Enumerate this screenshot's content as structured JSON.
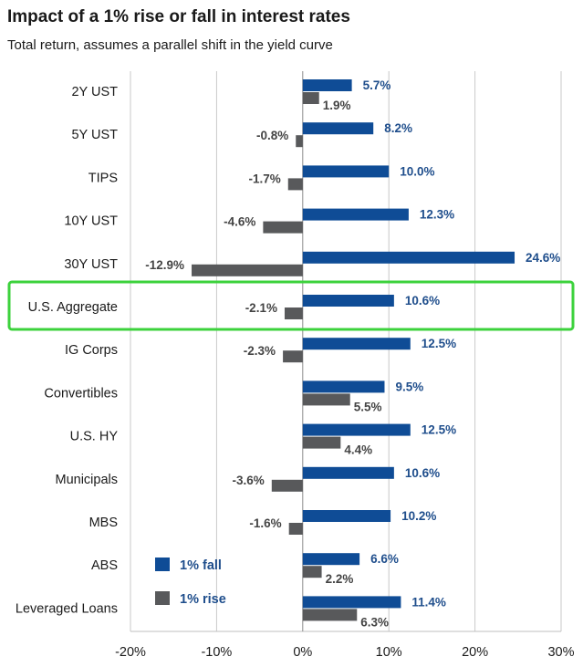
{
  "header": {
    "title": "Impact of a 1% rise or fall in interest rates",
    "subtitle": "Total return, assumes a parallel shift in the yield curve"
  },
  "chart_data": {
    "type": "bar",
    "orientation": "horizontal",
    "title": "Impact of a 1% rise or fall in interest rates",
    "subtitle": "Total return, assumes a parallel shift in the yield curve",
    "categories": [
      "2Y UST",
      "5Y UST",
      "TIPS",
      "10Y UST",
      "30Y UST",
      "U.S. Aggregate",
      "IG Corps",
      "Convertibles",
      "U.S. HY",
      "Municipals",
      "MBS",
      "ABS",
      "Leveraged Loans"
    ],
    "series": [
      {
        "name": "1% fall",
        "color": "#0f4c96",
        "values": [
          5.7,
          8.2,
          10.0,
          12.3,
          24.6,
          10.6,
          12.5,
          9.5,
          12.5,
          10.6,
          10.2,
          6.6,
          11.4
        ],
        "labels": [
          "5.7%",
          "8.2%",
          "10.0%",
          "12.3%",
          "24.6%",
          "10.6%",
          "12.5%",
          "9.5%",
          "12.5%",
          "10.6%",
          "10.2%",
          "6.6%",
          "11.4%"
        ]
      },
      {
        "name": "1% rise",
        "color": "#58595b",
        "values": [
          1.9,
          -0.8,
          -1.7,
          -4.6,
          -12.9,
          -2.1,
          -2.3,
          5.5,
          4.4,
          -3.6,
          -1.6,
          2.2,
          6.3
        ],
        "labels": [
          "1.9%",
          "-0.8%",
          "-1.7%",
          "-4.6%",
          "-12.9%",
          "-2.1%",
          "-2.3%",
          "5.5%",
          "4.4%",
          "-3.6%",
          "-1.6%",
          "2.2%",
          "6.3%"
        ]
      }
    ],
    "xlim": [
      -20,
      30
    ],
    "xticks": [
      -20,
      -10,
      0,
      10,
      20,
      30
    ],
    "xtick_labels": [
      "-20%",
      "-10%",
      "0%",
      "10%",
      "20%",
      "30%"
    ],
    "grid": "vertical",
    "legend": "lower-left inside plot",
    "highlight": {
      "category": "U.S. Aggregate",
      "color": "#3cd23c"
    }
  }
}
